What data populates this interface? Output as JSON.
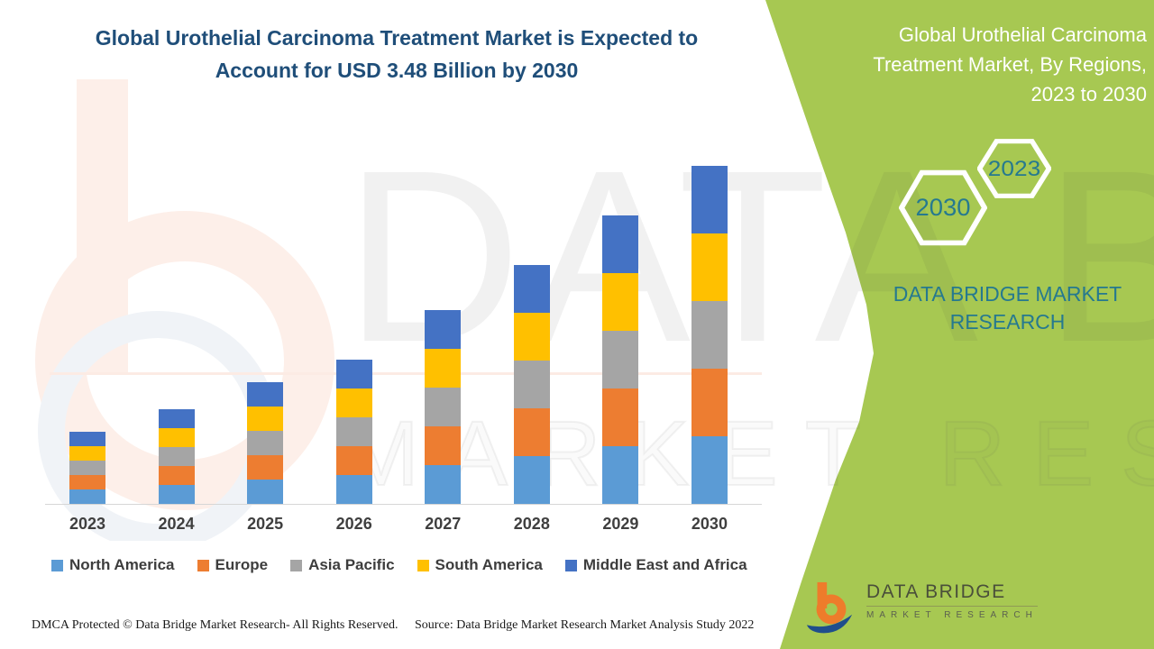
{
  "header": {
    "title_line1": "Global Urothelial Carcinoma Treatment Market is Expected to",
    "title_line2": "Account for USD 3.48 Billion by 2030"
  },
  "side_panel": {
    "title_line1": "Global Urothelial Carcinoma",
    "title_line2": "Treatment Market, By Regions,",
    "title_line3": "2023 to 2030",
    "hexagons": [
      {
        "label": "2030"
      },
      {
        "label": "2023"
      }
    ],
    "brand_line1": "DATA BRIDGE MARKET",
    "brand_line2": "RESEARCH",
    "accent_green": "#a7c852",
    "text_teal": "#26798f"
  },
  "chart_data": {
    "type": "bar",
    "stacked": true,
    "title": "Global Urothelial Carcinoma Treatment Market, By Regions, 2023 to 2030",
    "units": "USD Billion (estimated from bar heights; 2030 total stated as USD 3.48 Billion)",
    "categories": [
      "2023",
      "2024",
      "2025",
      "2026",
      "2027",
      "2028",
      "2029",
      "2030"
    ],
    "series": [
      {
        "name": "North America",
        "color": "#5b9bd5",
        "values": [
          0.148,
          0.198,
          0.248,
          0.298,
          0.398,
          0.494,
          0.596,
          0.696
        ]
      },
      {
        "name": "Europe",
        "color": "#ed7d31",
        "values": [
          0.148,
          0.198,
          0.248,
          0.298,
          0.398,
          0.494,
          0.596,
          0.696
        ]
      },
      {
        "name": "Asia Pacific",
        "color": "#a5a5a5",
        "values": [
          0.148,
          0.198,
          0.248,
          0.298,
          0.398,
          0.494,
          0.596,
          0.696
        ]
      },
      {
        "name": "South America",
        "color": "#ffc000",
        "values": [
          0.148,
          0.198,
          0.248,
          0.298,
          0.398,
          0.494,
          0.596,
          0.696
        ]
      },
      {
        "name": "Middle East and Africa",
        "color": "#4472c4",
        "values": [
          0.148,
          0.198,
          0.248,
          0.298,
          0.398,
          0.494,
          0.596,
          0.696
        ]
      }
    ],
    "totals": [
      0.74,
      0.99,
      1.24,
      1.49,
      1.99,
      2.47,
      2.98,
      3.48
    ],
    "y_axis_visible": false,
    "gridlines": false,
    "legend_position": "bottom"
  },
  "watermarks": {
    "brand_big": "DATA BRIDGE",
    "brand_outline": "MARKET RESEARCH"
  },
  "logo": {
    "title": "DATA BRIDGE",
    "subtitle": "MARKET RESEARCH"
  },
  "footer": {
    "dmca": "DMCA Protected © Data Bridge Market Research- All Rights Reserved.",
    "source": "Source: Data Bridge Market Research Market Analysis Study 2022"
  }
}
